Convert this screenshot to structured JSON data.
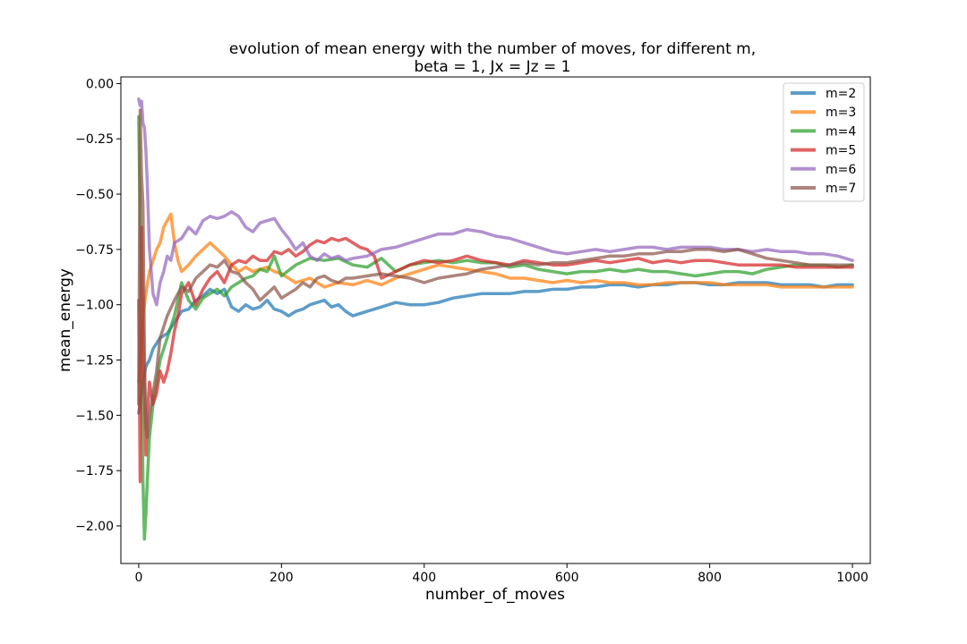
{
  "chart_data": {
    "type": "line",
    "title_line1": "evolution of mean energy with the number of moves, for different m,",
    "title_line2": "beta = 1, Jx = Jz = 1",
    "xlabel": "number_of_moves",
    "ylabel": "mean_energy",
    "xlim": [
      -25,
      1025
    ],
    "ylim": [
      -2.17,
      0.03
    ],
    "xticks": [
      0,
      200,
      400,
      600,
      800,
      1000
    ],
    "xtick_labels": [
      "0",
      "200",
      "400",
      "600",
      "800",
      "1000"
    ],
    "yticks": [
      0.0,
      -0.25,
      -0.5,
      -0.75,
      -1.0,
      -1.25,
      -1.5,
      -1.75,
      -2.0
    ],
    "ytick_labels": [
      "0.00",
      "−0.25",
      "−0.50",
      "−0.75",
      "−1.00",
      "−1.25",
      "−1.50",
      "−1.75",
      "−2.00"
    ],
    "grid": false,
    "legend_position": "top-right",
    "series": [
      {
        "name": "m=2",
        "color": "#1f77b4",
        "x": [
          0,
          3,
          6,
          10,
          15,
          20,
          30,
          40,
          50,
          60,
          70,
          80,
          90,
          100,
          110,
          120,
          130,
          140,
          150,
          160,
          170,
          180,
          190,
          200,
          210,
          220,
          230,
          240,
          250,
          260,
          270,
          280,
          290,
          300,
          320,
          340,
          360,
          380,
          400,
          420,
          440,
          460,
          480,
          500,
          520,
          540,
          560,
          580,
          600,
          620,
          640,
          660,
          680,
          700,
          720,
          740,
          760,
          780,
          800,
          820,
          840,
          860,
          880,
          900,
          920,
          940,
          960,
          980,
          1000
        ],
        "y": [
          -1.49,
          -1.42,
          -1.35,
          -1.28,
          -1.25,
          -1.2,
          -1.15,
          -1.13,
          -1.08,
          -1.03,
          -1.02,
          -0.98,
          -0.96,
          -0.93,
          -0.95,
          -0.93,
          -1.01,
          -1.03,
          -1.0,
          -1.02,
          -1.01,
          -0.98,
          -1.02,
          -1.03,
          -1.05,
          -1.03,
          -1.02,
          -1.0,
          -0.99,
          -0.98,
          -1.01,
          -1.0,
          -1.03,
          -1.05,
          -1.03,
          -1.01,
          -0.99,
          -1.0,
          -1.0,
          -0.99,
          -0.97,
          -0.96,
          -0.95,
          -0.95,
          -0.95,
          -0.94,
          -0.94,
          -0.93,
          -0.93,
          -0.92,
          -0.92,
          -0.91,
          -0.91,
          -0.92,
          -0.91,
          -0.91,
          -0.9,
          -0.9,
          -0.91,
          -0.91,
          -0.9,
          -0.9,
          -0.9,
          -0.91,
          -0.91,
          -0.91,
          -0.92,
          -0.91,
          -0.91
        ]
      },
      {
        "name": "m=3",
        "color": "#ff7f0e",
        "x": [
          0,
          3,
          6,
          10,
          15,
          20,
          25,
          30,
          35,
          40,
          45,
          50,
          55,
          60,
          70,
          80,
          90,
          100,
          110,
          120,
          130,
          140,
          150,
          160,
          170,
          180,
          190,
          200,
          220,
          240,
          260,
          280,
          300,
          320,
          340,
          360,
          380,
          400,
          420,
          440,
          460,
          480,
          500,
          520,
          540,
          560,
          580,
          600,
          620,
          640,
          660,
          680,
          700,
          720,
          740,
          760,
          780,
          800,
          820,
          840,
          860,
          880,
          900,
          920,
          940,
          960,
          980,
          1000
        ],
        "y": [
          -1.35,
          -1.2,
          -1.05,
          -0.95,
          -0.85,
          -0.8,
          -0.75,
          -0.72,
          -0.65,
          -0.62,
          -0.59,
          -0.72,
          -0.8,
          -0.85,
          -0.82,
          -0.78,
          -0.75,
          -0.72,
          -0.75,
          -0.78,
          -0.82,
          -0.85,
          -0.83,
          -0.85,
          -0.84,
          -0.83,
          -0.85,
          -0.86,
          -0.9,
          -0.88,
          -0.92,
          -0.9,
          -0.91,
          -0.89,
          -0.91,
          -0.88,
          -0.86,
          -0.84,
          -0.82,
          -0.83,
          -0.84,
          -0.85,
          -0.86,
          -0.88,
          -0.88,
          -0.89,
          -0.9,
          -0.89,
          -0.9,
          -0.89,
          -0.9,
          -0.9,
          -0.91,
          -0.91,
          -0.9,
          -0.9,
          -0.9,
          -0.9,
          -0.91,
          -0.91,
          -0.91,
          -0.91,
          -0.92,
          -0.92,
          -0.92,
          -0.92,
          -0.92,
          -0.92
        ]
      },
      {
        "name": "m=4",
        "color": "#2ca02c",
        "x": [
          0,
          2,
          4,
          6,
          8,
          10,
          12,
          15,
          20,
          25,
          30,
          40,
          50,
          60,
          70,
          80,
          90,
          100,
          110,
          120,
          130,
          140,
          150,
          160,
          170,
          180,
          190,
          200,
          220,
          240,
          260,
          280,
          300,
          320,
          340,
          360,
          380,
          400,
          420,
          440,
          460,
          480,
          500,
          520,
          540,
          560,
          580,
          600,
          620,
          640,
          660,
          680,
          700,
          720,
          740,
          760,
          780,
          800,
          820,
          840,
          860,
          880,
          900,
          920,
          940,
          960,
          980,
          1000
        ],
        "y": [
          -0.15,
          -0.62,
          -1.3,
          -1.8,
          -2.06,
          -1.95,
          -1.8,
          -1.6,
          -1.45,
          -1.35,
          -1.25,
          -1.15,
          -1.05,
          -0.9,
          -0.98,
          -1.02,
          -0.97,
          -0.95,
          -0.93,
          -0.96,
          -0.92,
          -0.9,
          -0.88,
          -0.87,
          -0.84,
          -0.85,
          -0.78,
          -0.87,
          -0.82,
          -0.79,
          -0.8,
          -0.79,
          -0.82,
          -0.83,
          -0.79,
          -0.85,
          -0.82,
          -0.81,
          -0.8,
          -0.81,
          -0.8,
          -0.81,
          -0.81,
          -0.83,
          -0.82,
          -0.84,
          -0.85,
          -0.86,
          -0.85,
          -0.85,
          -0.84,
          -0.85,
          -0.84,
          -0.85,
          -0.85,
          -0.86,
          -0.87,
          -0.86,
          -0.85,
          -0.85,
          -0.86,
          -0.84,
          -0.83,
          -0.82,
          -0.82,
          -0.82,
          -0.83,
          -0.82
        ]
      },
      {
        "name": "m=5",
        "color": "#d62728",
        "x": [
          0,
          2,
          4,
          6,
          8,
          10,
          12,
          15,
          20,
          25,
          30,
          35,
          40,
          45,
          50,
          55,
          60,
          70,
          80,
          90,
          100,
          110,
          120,
          130,
          140,
          150,
          160,
          170,
          180,
          190,
          200,
          210,
          220,
          230,
          240,
          250,
          260,
          270,
          280,
          290,
          300,
          310,
          320,
          330,
          340,
          360,
          380,
          400,
          420,
          440,
          460,
          480,
          500,
          520,
          540,
          560,
          580,
          600,
          620,
          640,
          660,
          680,
          700,
          720,
          740,
          760,
          780,
          800,
          820,
          840,
          860,
          880,
          900,
          920,
          940,
          960,
          980,
          1000
        ],
        "y": [
          -0.98,
          -1.8,
          -0.65,
          -1.1,
          -1.4,
          -1.68,
          -1.5,
          -1.35,
          -1.45,
          -1.4,
          -1.3,
          -1.35,
          -1.3,
          -1.22,
          -1.12,
          -1.05,
          -0.95,
          -0.9,
          -1.0,
          -0.93,
          -0.88,
          -0.85,
          -0.9,
          -0.82,
          -0.8,
          -0.81,
          -0.78,
          -0.8,
          -0.8,
          -0.76,
          -0.77,
          -0.75,
          -0.78,
          -0.76,
          -0.73,
          -0.71,
          -0.72,
          -0.7,
          -0.71,
          -0.7,
          -0.72,
          -0.74,
          -0.75,
          -0.78,
          -0.88,
          -0.85,
          -0.82,
          -0.8,
          -0.81,
          -0.8,
          -0.78,
          -0.8,
          -0.81,
          -0.82,
          -0.8,
          -0.81,
          -0.82,
          -0.82,
          -0.81,
          -0.8,
          -0.81,
          -0.8,
          -0.79,
          -0.81,
          -0.8,
          -0.81,
          -0.8,
          -0.8,
          -0.81,
          -0.82,
          -0.82,
          -0.82,
          -0.82,
          -0.83,
          -0.83,
          -0.83,
          -0.83,
          -0.83
        ]
      },
      {
        "name": "m=6",
        "color": "#9467bd",
        "x": [
          0,
          2,
          4,
          6,
          8,
          10,
          12,
          15,
          20,
          25,
          30,
          35,
          40,
          45,
          50,
          60,
          70,
          80,
          90,
          100,
          110,
          120,
          130,
          140,
          150,
          160,
          170,
          180,
          190,
          200,
          210,
          220,
          230,
          240,
          250,
          260,
          270,
          280,
          290,
          300,
          320,
          340,
          360,
          380,
          400,
          420,
          440,
          460,
          480,
          500,
          520,
          540,
          560,
          580,
          600,
          620,
          640,
          660,
          680,
          700,
          720,
          740,
          760,
          780,
          800,
          820,
          840,
          860,
          880,
          900,
          920,
          940,
          960,
          980,
          1000
        ],
        "y": [
          -0.07,
          -0.1,
          -0.08,
          -0.18,
          -0.2,
          -0.3,
          -0.45,
          -0.75,
          -0.95,
          -1.0,
          -0.9,
          -0.85,
          -0.78,
          -0.8,
          -0.72,
          -0.7,
          -0.65,
          -0.68,
          -0.62,
          -0.6,
          -0.61,
          -0.6,
          -0.58,
          -0.6,
          -0.65,
          -0.67,
          -0.63,
          -0.62,
          -0.61,
          -0.66,
          -0.7,
          -0.75,
          -0.72,
          -0.78,
          -0.8,
          -0.77,
          -0.79,
          -0.78,
          -0.8,
          -0.79,
          -0.78,
          -0.75,
          -0.74,
          -0.72,
          -0.7,
          -0.68,
          -0.68,
          -0.66,
          -0.67,
          -0.69,
          -0.7,
          -0.72,
          -0.74,
          -0.76,
          -0.77,
          -0.76,
          -0.75,
          -0.76,
          -0.75,
          -0.74,
          -0.74,
          -0.75,
          -0.74,
          -0.74,
          -0.74,
          -0.75,
          -0.75,
          -0.76,
          -0.75,
          -0.76,
          -0.76,
          -0.77,
          -0.77,
          -0.78,
          -0.8
        ]
      },
      {
        "name": "m=7",
        "color": "#8c564b",
        "x": [
          0,
          2,
          4,
          6,
          8,
          10,
          12,
          15,
          20,
          25,
          30,
          40,
          50,
          60,
          70,
          80,
          90,
          100,
          110,
          120,
          130,
          140,
          150,
          160,
          170,
          180,
          190,
          200,
          210,
          220,
          230,
          240,
          250,
          260,
          270,
          280,
          290,
          300,
          320,
          340,
          360,
          380,
          400,
          420,
          440,
          460,
          480,
          500,
          520,
          540,
          560,
          580,
          600,
          620,
          640,
          660,
          680,
          700,
          720,
          740,
          760,
          780,
          800,
          820,
          840,
          860,
          880,
          900,
          920,
          940,
          960,
          980,
          1000
        ],
        "y": [
          -1.45,
          -0.12,
          -0.42,
          -0.55,
          -1.2,
          -1.55,
          -1.6,
          -1.5,
          -1.4,
          -1.3,
          -1.15,
          -1.05,
          -0.98,
          -0.92,
          -0.94,
          -0.88,
          -0.85,
          -0.82,
          -0.83,
          -0.8,
          -0.85,
          -0.86,
          -0.9,
          -0.93,
          -0.98,
          -0.95,
          -0.92,
          -0.97,
          -0.95,
          -0.93,
          -0.9,
          -0.92,
          -0.88,
          -0.87,
          -0.89,
          -0.9,
          -0.88,
          -0.88,
          -0.87,
          -0.86,
          -0.87,
          -0.88,
          -0.9,
          -0.88,
          -0.87,
          -0.86,
          -0.84,
          -0.83,
          -0.82,
          -0.81,
          -0.82,
          -0.81,
          -0.81,
          -0.8,
          -0.79,
          -0.78,
          -0.78,
          -0.77,
          -0.77,
          -0.76,
          -0.76,
          -0.75,
          -0.75,
          -0.76,
          -0.75,
          -0.77,
          -0.79,
          -0.8,
          -0.81,
          -0.82,
          -0.82,
          -0.82,
          -0.82
        ]
      }
    ]
  }
}
